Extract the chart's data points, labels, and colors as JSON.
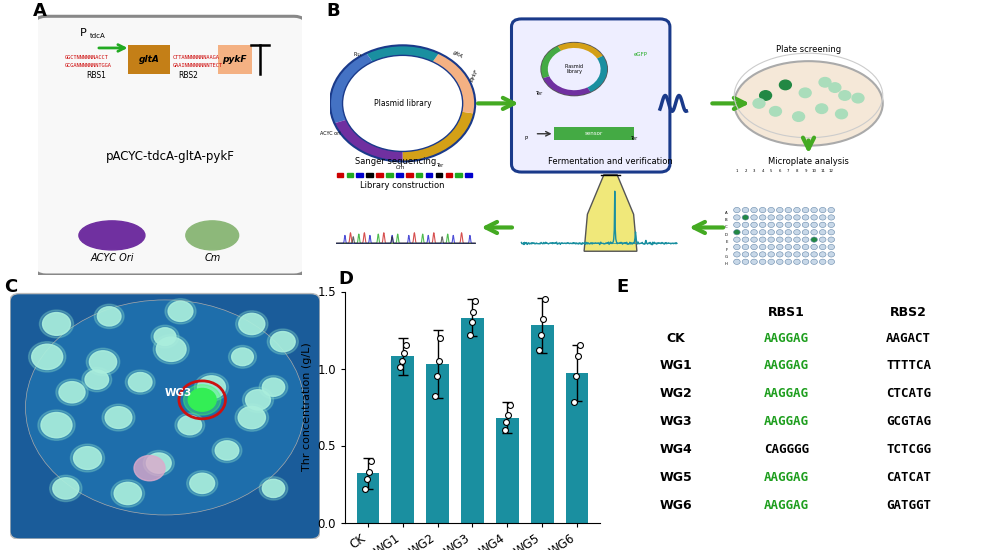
{
  "panel_labels": [
    "A",
    "B",
    "C",
    "D",
    "E"
  ],
  "panel_label_fontsize": 13,
  "panel_label_fontweight": "bold",
  "plasmid_name": "pACYC-tdcA-gltA-pykF",
  "acyc_ori_label": "ACYC Ori",
  "cm_label": "Cm",
  "promoter_label": "P",
  "promoter_sub": "tdcA",
  "gltA_label": "gltA",
  "pykF_label": "pykF",
  "rbs1_label": "RBS1",
  "rbs2_label": "RBS2",
  "seq1_top": "GGCTNNNNNNACCT",
  "seq1_bot": "GCGANNNNNNNTGGA",
  "seq2_top": "CTTANNNNNNNAAGA",
  "seq2_bot": "GAAINNNNNNNNTECT",
  "bar_categories": [
    "CK",
    "WG1",
    "WG2",
    "WG3",
    "WG4",
    "WG5",
    "WG6"
  ],
  "bar_values": [
    0.32,
    1.08,
    1.03,
    1.33,
    0.68,
    1.28,
    0.97
  ],
  "bar_errors": [
    0.1,
    0.12,
    0.22,
    0.12,
    0.1,
    0.18,
    0.18
  ],
  "bar_dots_ck": [
    0.22,
    0.28,
    0.33,
    0.4
  ],
  "bar_dots_wg1": [
    1.01,
    1.05,
    1.1,
    1.15
  ],
  "bar_dots_wg2": [
    0.82,
    0.95,
    1.05,
    1.2
  ],
  "bar_dots_wg3": [
    1.22,
    1.3,
    1.37,
    1.44
  ],
  "bar_dots_wg4": [
    0.6,
    0.65,
    0.7,
    0.76
  ],
  "bar_dots_wg5": [
    1.12,
    1.22,
    1.32,
    1.45
  ],
  "bar_dots_wg6": [
    0.78,
    0.95,
    1.08,
    1.15
  ],
  "bar_color": "#1a8fa0",
  "bar_ylabel": "Thr concentration (g/L)",
  "bar_ylim": [
    0,
    1.5
  ],
  "table_strains": [
    "CK",
    "WG1",
    "WG2",
    "WG3",
    "WG4",
    "WG5",
    "WG6"
  ],
  "table_rbs1": [
    "AAGGAG",
    "AAGGAG",
    "AAGGAG",
    "AAGGAG",
    "CAGGGG",
    "AAGGAG",
    "AAGGAG"
  ],
  "table_rbs2": [
    "AAGACT",
    "TTTTCA",
    "CTCATG",
    "GCGTAG",
    "TCTCGG",
    "CATCAT",
    "GATGGT"
  ],
  "green_seq_color": "#1e9e1e",
  "bg_color": "#ffffff"
}
